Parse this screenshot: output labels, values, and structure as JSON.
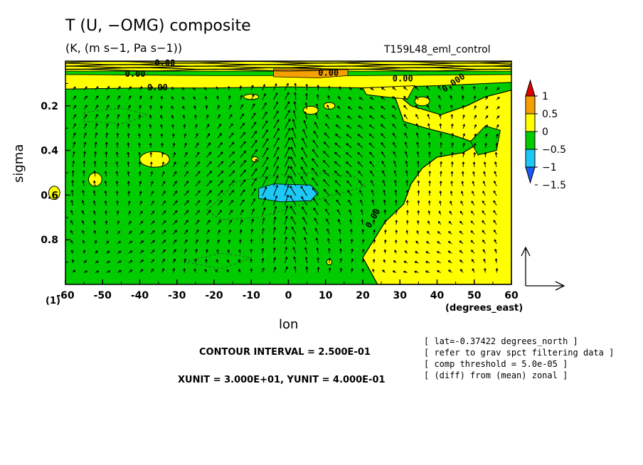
{
  "figure": {
    "title": "T (U, −OMG) composite",
    "subtitle": "(K, (m s−1, Pa s−1))",
    "run_name": "T159L48_eml_control",
    "extra_label": "(1)",
    "contour_interval": "CONTOUR INTERVAL = 2.500E-01",
    "vector_units": "XUNIT = 3.000E+01, YUNIT = 4.000E-01",
    "notes": [
      "[ lat=-0.37422 degrees_north ]",
      "[ refer to grav spct filtering data ]",
      "[ comp threshold = 5.0e-05 ]",
      "[ (diff) from (mean) zonal ]"
    ]
  },
  "chart_data": {
    "type": "heatmap",
    "title": "T (U, −OMG) composite",
    "subtitle": "(K, (m s−1, Pa s−1))",
    "xlabel": "lon",
    "xunits": "(degrees_east)",
    "ylabel": "sigma",
    "xlim": [
      -60,
      60
    ],
    "ylim": [
      1.0,
      0.0
    ],
    "y_inverted": true,
    "x_ticks": [
      -60,
      -50,
      -40,
      -30,
      -20,
      -10,
      0,
      10,
      20,
      30,
      40,
      50,
      60
    ],
    "y_ticks": [
      0.2,
      0.4,
      0.6,
      0.8
    ],
    "colorbar": {
      "levels": [
        -1.5,
        -1,
        -0.5,
        0,
        0.5,
        1
      ],
      "labels": [
        "1",
        "0.5",
        "0",
        "−0.5",
        "−1",
        "−1.5"
      ],
      "colors": [
        "#1a5af5",
        "#1cc8f5",
        "#00cc00",
        "#ffff00",
        "#f5a000",
        "#dd0000"
      ]
    },
    "regions": [
      {
        "value_range": [
          -0.5,
          0
        ],
        "color": "#00cc00",
        "description_level": "background"
      },
      {
        "value_range": [
          0,
          0.5
        ],
        "color": "#ffff00",
        "lon_range": [
          20,
          60
        ],
        "sigma_range": [
          0.2,
          1.0
        ]
      },
      {
        "value_range": [
          0,
          0.5
        ],
        "color": "#ffff00",
        "lon_range": [
          -60,
          60
        ],
        "sigma_range": [
          0.02,
          0.12
        ]
      },
      {
        "value_range": [
          0.5,
          1
        ],
        "color": "#f5a000",
        "lon_range": [
          -5,
          15
        ],
        "sigma_range": [
          0.02,
          0.06
        ]
      },
      {
        "value_range": [
          -1,
          -0.5
        ],
        "color": "#1cc8f5",
        "lon_range": [
          -8,
          8
        ],
        "sigma_range": [
          0.55,
          0.63
        ]
      }
    ],
    "contour_labels": [
      "0.00",
      "0.00",
      "0.00",
      "0.00",
      "0.00",
      "0.000",
      "0.00"
    ],
    "vectors": {
      "x_unit": 30,
      "y_unit": 0.4,
      "convergence_lon": 0
    }
  }
}
